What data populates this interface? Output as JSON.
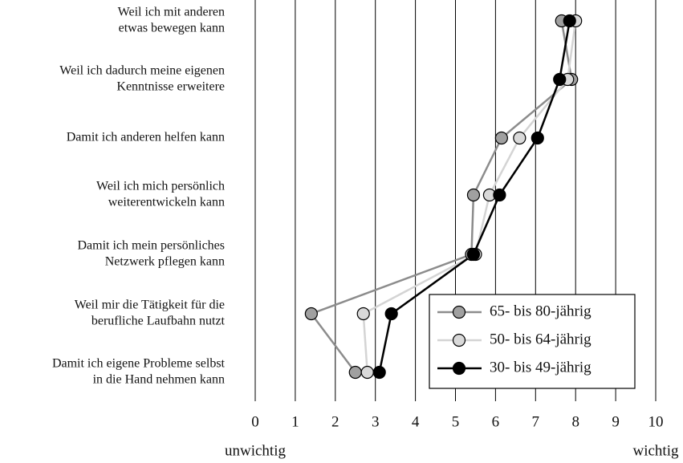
{
  "chart_data": {
    "type": "line",
    "orientation": "horizontal",
    "categories": [
      [
        "Weil ich mit anderen",
        "etwas bewegen kann"
      ],
      [
        "Weil ich dadurch meine eigenen",
        "Kenntnisse erweitere"
      ],
      [
        "Damit ich anderen helfen kann"
      ],
      [
        "Weil ich mich persönlich",
        "weiterentwickeln kann"
      ],
      [
        "Damit ich mein persönliches",
        "Netzwerk pflegen kann"
      ],
      [
        "Weil mir die Tätigkeit für die",
        "berufliche Laufbahn nutzt"
      ],
      [
        "Damit ich eigene Probleme selbst",
        "in die Hand nehmen kann"
      ]
    ],
    "series": [
      {
        "name": "65- bis 80-jährig",
        "color": "#8c8c8c",
        "marker_color": "#a0a0a0",
        "values": [
          7.65,
          7.9,
          6.15,
          5.45,
          5.4,
          1.4,
          2.5
        ]
      },
      {
        "name": "50- bis 64-jährig",
        "color": "#d4d4d4",
        "marker_color": "#d9d9d9",
        "values": [
          8.0,
          7.8,
          6.6,
          5.85,
          5.5,
          2.7,
          2.8
        ]
      },
      {
        "name": "30- bis 49-jährig",
        "color": "#000000",
        "marker_color": "#000000",
        "values": [
          7.85,
          7.6,
          7.05,
          6.1,
          5.45,
          3.4,
          3.1
        ]
      }
    ],
    "xlim": [
      0,
      10
    ],
    "xticks": [
      0,
      1,
      2,
      3,
      4,
      5,
      6,
      7,
      8,
      9,
      10
    ],
    "grid": true,
    "annotations": [
      "unwichtig",
      "wichtig"
    ],
    "legend": "lower right"
  }
}
